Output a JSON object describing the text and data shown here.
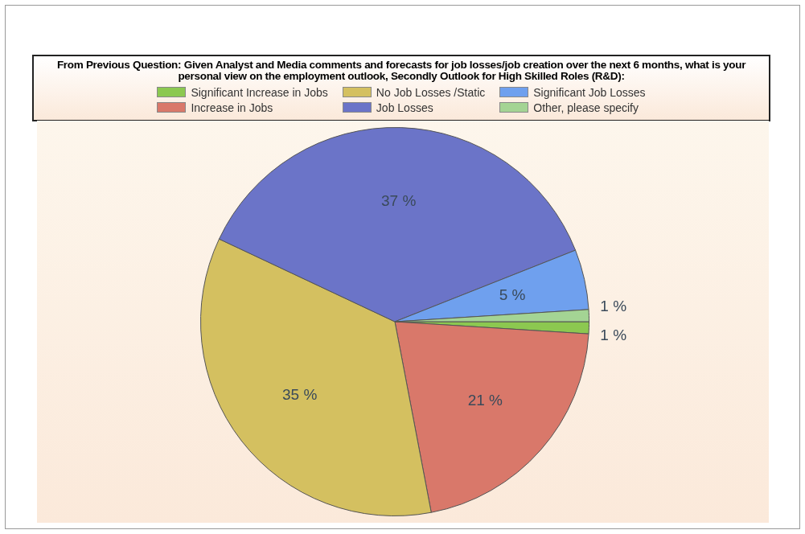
{
  "chart_data": {
    "type": "pie",
    "title": "From Previous Question: Given Analyst and Media comments and forecasts for job losses/job creation over the next 6 months, what is your personal view on the employment outlook, Secondly Outlook for High Skilled Roles (R&D):",
    "categories": [
      "Significant Increase in Jobs",
      "Increase in Jobs",
      "No Job Losses /Static",
      "Job Losses",
      "Significant Job Losses",
      "Other, please specify"
    ],
    "values": [
      1,
      21,
      35,
      37,
      5,
      1
    ],
    "colors": [
      "#8cc850",
      "#d9786a",
      "#d4c060",
      "#6b74c8",
      "#6fa0ee",
      "#a4d494"
    ],
    "value_labels": [
      "1 %",
      "21 %",
      "35 %",
      "37 %",
      "5 %",
      "1 %"
    ],
    "legend": "top"
  }
}
